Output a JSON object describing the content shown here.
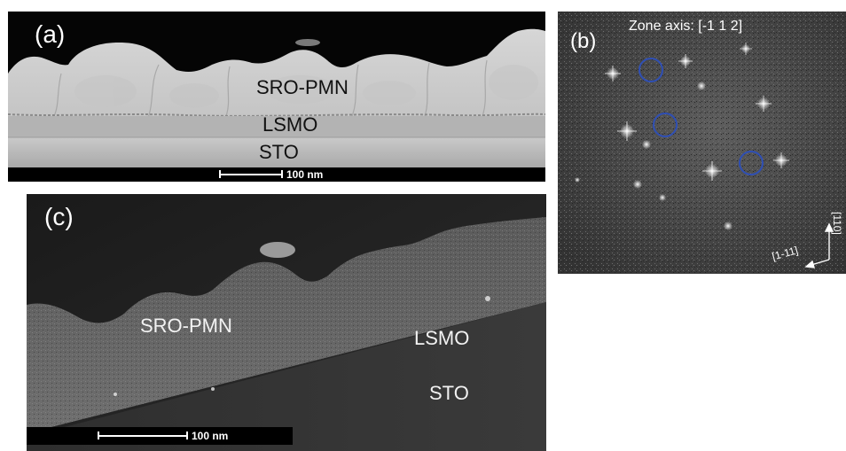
{
  "panel_a": {
    "label": "(a)",
    "layers": [
      "SRO-PMN",
      "LSMO",
      "STO"
    ],
    "scale_bar": "100 nm"
  },
  "panel_b": {
    "label": "(b)",
    "zone_axis": "Zone axis: [-1 1 2]",
    "direction_up": "[110]",
    "direction_left": "[1-11]",
    "circle_color": "#2f4fb4"
  },
  "panel_c": {
    "label": "(c)",
    "layers": [
      "SRO-PMN",
      "LSMO",
      "STO"
    ],
    "scale_bar": "100 nm"
  }
}
